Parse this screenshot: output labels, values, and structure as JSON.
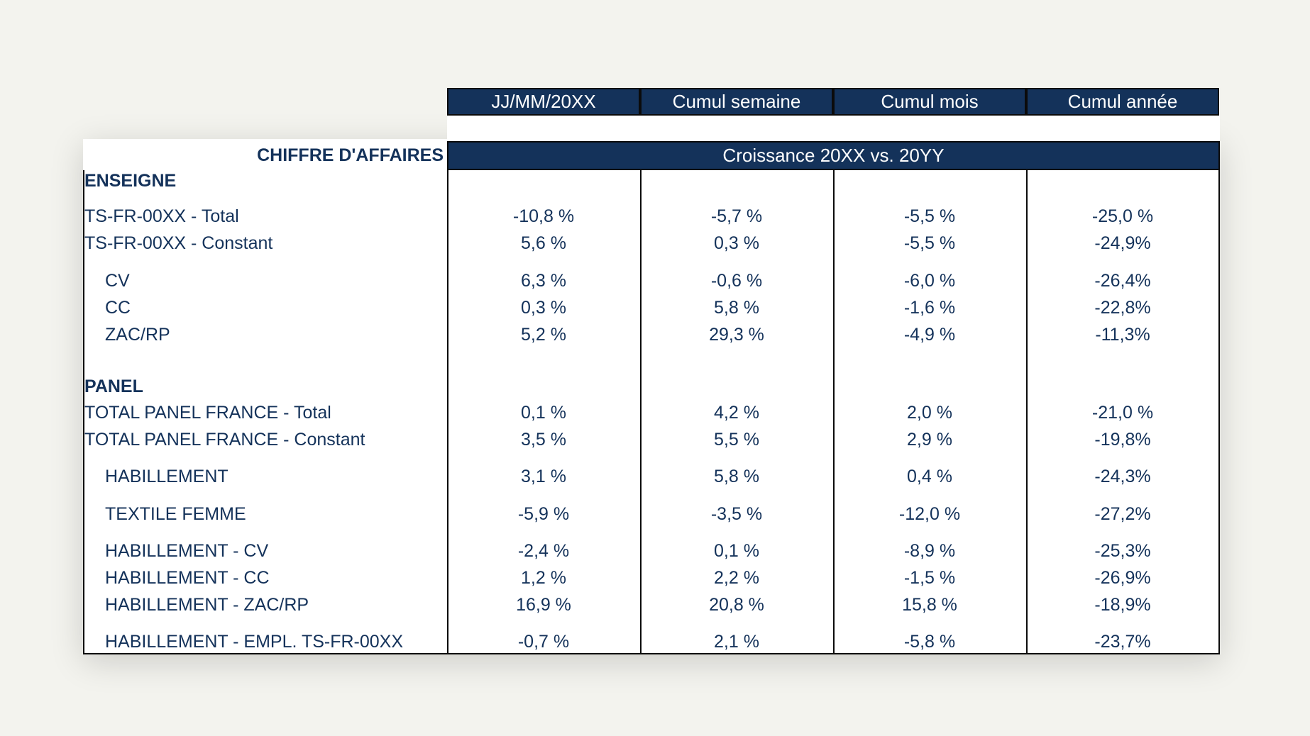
{
  "header": {
    "columns": [
      "JJ/MM/20XX",
      "Cumul semaine",
      "Cumul mois",
      "Cumul année"
    ],
    "row_title": "CHIFFRE D'AFFAIRES",
    "growth_band": "Croissance 20XX vs. 20YY"
  },
  "sections": {
    "enseigne": "ENSEIGNE",
    "panel": "PANEL"
  },
  "rows": [
    {
      "label": "TS-FR-00XX - Total",
      "values": [
        "-10,8 %",
        "-5,7 %",
        "-5,5 %",
        "-25,0 %"
      ]
    },
    {
      "label": "TS-FR-00XX - Constant",
      "values": [
        "5,6 %",
        "0,3 %",
        "-5,5 %",
        "-24,9%"
      ]
    },
    {
      "label": "CV",
      "values": [
        "6,3 %",
        "-0,6 %",
        "-6,0 %",
        "-26,4%"
      ]
    },
    {
      "label": "CC",
      "values": [
        "0,3 %",
        "5,8 %",
        "-1,6 %",
        "-22,8%"
      ]
    },
    {
      "label": "ZAC/RP",
      "values": [
        "5,2 %",
        "29,3 %",
        "-4,9 %",
        "-11,3%"
      ]
    },
    {
      "label": "TOTAL PANEL FRANCE - Total",
      "values": [
        "0,1 %",
        "4,2 %",
        "2,0 %",
        "-21,0 %"
      ]
    },
    {
      "label": "TOTAL PANEL FRANCE - Constant",
      "values": [
        "3,5 %",
        "5,5 %",
        "2,9 %",
        "-19,8%"
      ]
    },
    {
      "label": "HABILLEMENT",
      "values": [
        "3,1 %",
        "5,8 %",
        "0,4 %",
        "-24,3%"
      ]
    },
    {
      "label": "TEXTILE FEMME",
      "values": [
        "-5,9 %",
        "-3,5 %",
        "-12,0 %",
        "-27,2%"
      ]
    },
    {
      "label": "HABILLEMENT - CV",
      "values": [
        "-2,4 %",
        "0,1 %",
        "-8,9 %",
        "-25,3%"
      ]
    },
    {
      "label": "HABILLEMENT - CC",
      "values": [
        "1,2 %",
        "2,2 %",
        "-1,5 %",
        "-26,9%"
      ]
    },
    {
      "label": "HABILLEMENT - ZAC/RP",
      "values": [
        "16,9 %",
        "20,8 %",
        "15,8 %",
        "-18,9%"
      ]
    },
    {
      "label": "HABILLEMENT - EMPL. TS-FR-00XX",
      "values": [
        "-0,7 %",
        "2,1 %",
        "-5,8 %",
        "-23,7%"
      ]
    }
  ]
}
